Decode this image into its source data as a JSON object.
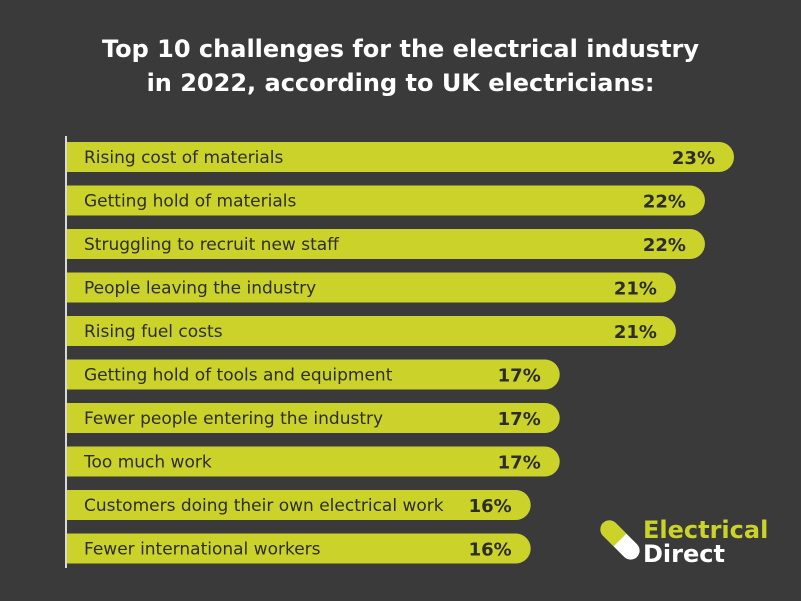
{
  "title_line1": "Top 10 challenges for the electrical industry",
  "title_line2": "in 2022, according to UK electricians:",
  "colors": {
    "background": "#3a3a3a",
    "bar": "#cbd32a",
    "text_dark": "#2d2d2d",
    "axis": "#d9d9d9"
  },
  "chart_data": {
    "type": "bar",
    "orientation": "horizontal",
    "title": "Top 10 challenges for the electrical industry in 2022, according to UK electricians:",
    "value_format": "percent",
    "categories": [
      "Rising cost of materials",
      "Getting hold of materials",
      "Struggling to recruit new staff",
      "People leaving the industry",
      "Rising fuel costs",
      "Getting hold of tools and equipment",
      "Fewer people entering the industry",
      "Too much work",
      "Customers doing their own electrical work",
      "Fewer international workers"
    ],
    "values": [
      23,
      22,
      22,
      21,
      21,
      17,
      17,
      17,
      16,
      16
    ],
    "value_labels": [
      "23%",
      "22%",
      "22%",
      "21%",
      "21%",
      "17%",
      "17%",
      "17%",
      "16%",
      "16%"
    ]
  },
  "logo": {
    "line1": "Electrical",
    "line2": "Direct",
    "icon": "battery-pill-icon"
  }
}
